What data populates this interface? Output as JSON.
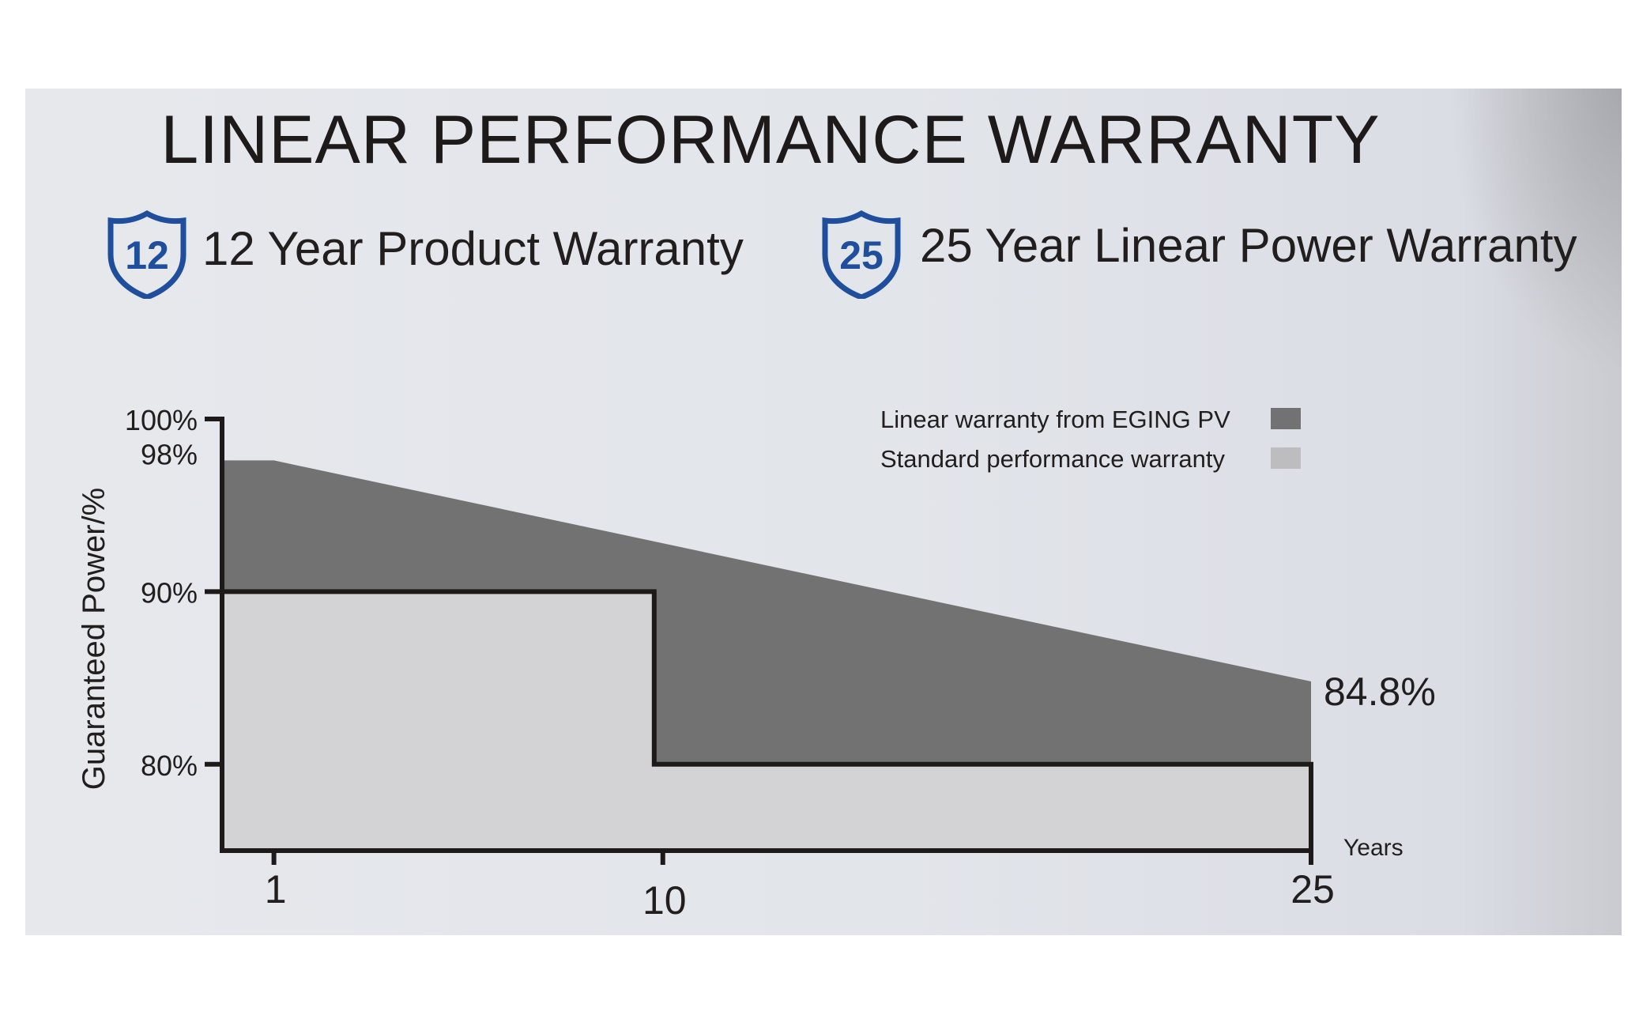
{
  "title": "LINEAR PERFORMANCE WARRANTY",
  "warranties": [
    {
      "badge_number": "12",
      "label": "12 Year Product Warranty",
      "icon": "shield-icon"
    },
    {
      "badge_number": "25",
      "label": "25 Year Linear Power Warranty",
      "icon": "shield-icon"
    }
  ],
  "colors": {
    "badge_blue": "#1f4e9c",
    "linear_fill": "#727272",
    "standard_fill": "#d3d3d5",
    "axis": "#1e1a1a"
  },
  "chart_data": {
    "type": "area",
    "title": "LINEAR PERFORMANCE WARRANTY",
    "ylabel": "Guaranteed Power/%",
    "xlabel": "Years",
    "xlim": [
      -0.2,
      25
    ],
    "ylim": [
      75,
      100
    ],
    "x_ticks": [
      {
        "value": 1,
        "label": "1"
      },
      {
        "value": 10,
        "label": "10"
      },
      {
        "value": 25,
        "label": "25"
      }
    ],
    "y_ticks": [
      {
        "value": 100,
        "label": "100%"
      },
      {
        "value": 98,
        "label": "98%"
      },
      {
        "value": 90,
        "label": "90%"
      },
      {
        "value": 80,
        "label": "80%"
      }
    ],
    "legend": [
      {
        "label": "Linear warranty from EGING PV",
        "color": "#727272"
      },
      {
        "label": "Standard performance warranty",
        "color": "#bdbdbf"
      }
    ],
    "series": [
      {
        "name": "Linear warranty from EGING PV",
        "points": [
          [
            -0.2,
            97.6
          ],
          [
            1,
            97.6
          ],
          [
            25,
            84.8
          ]
        ]
      },
      {
        "name": "Standard performance warranty",
        "points": [
          [
            -0.2,
            90
          ],
          [
            9.8,
            90
          ],
          [
            9.8,
            80
          ],
          [
            25,
            80
          ]
        ]
      }
    ],
    "annotation": {
      "x": 25,
      "y": 84.8,
      "text": "84.8%"
    }
  }
}
